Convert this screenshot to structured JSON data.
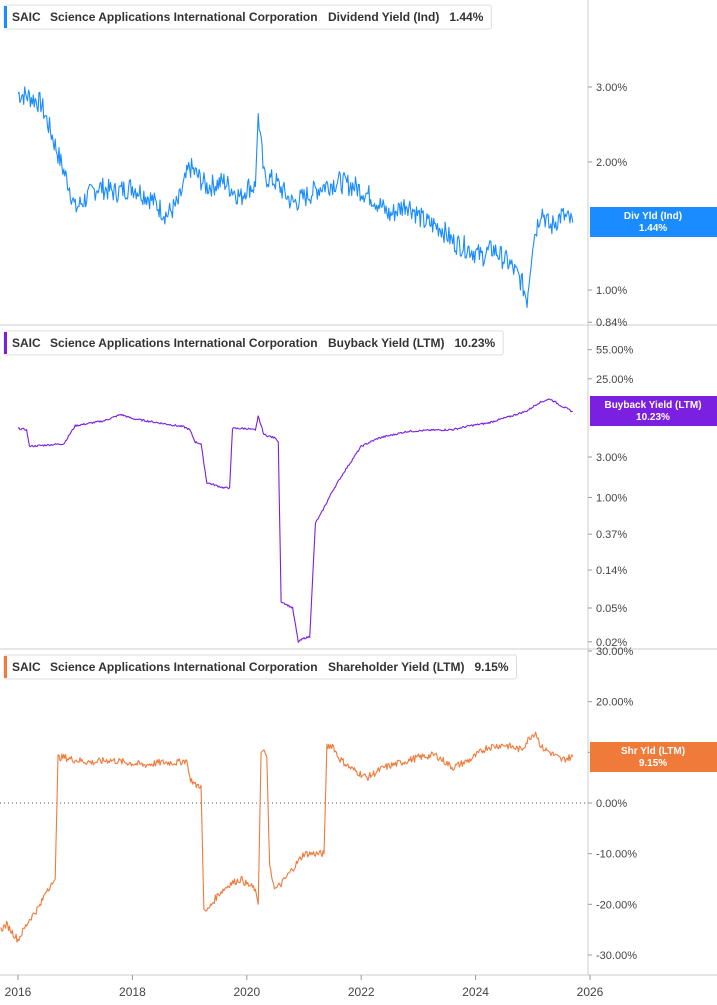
{
  "chart_data": [
    {
      "type": "line",
      "ticker": "SAIC",
      "company": "Science Applications International Corporation",
      "metric": "Dividend Yield (Ind)",
      "current_value": "1.44%",
      "badge_label": "Div Yld (Ind)",
      "color": "#1a8cff",
      "scale": "log",
      "y_ticks": [
        {
          "label": "3.00%",
          "value": 3.0
        },
        {
          "label": "2.00%",
          "value": 2.0
        },
        {
          "label": "1.00%",
          "value": 1.0
        },
        {
          "label": "0.84%",
          "value": 0.84
        }
      ],
      "series": [
        {
          "x": [
            2016.0,
            2016.2,
            2016.4,
            2016.6,
            2016.8,
            2016.9,
            2017.0,
            2017.2,
            2017.4,
            2017.7,
            2018.0,
            2018.3,
            2018.6,
            2018.8,
            2019.0,
            2019.3,
            2019.6,
            2019.9,
            2020.0,
            2020.15,
            2020.2,
            2020.3,
            2020.5,
            2020.8,
            2021.0,
            2021.3,
            2021.6,
            2021.9,
            2022.2,
            2022.5,
            2022.8,
            2022.9,
            2023.1,
            2023.4,
            2023.6,
            2023.9,
            2024.1,
            2024.3,
            2024.6,
            2024.8,
            2024.9,
            2025.0,
            2025.15,
            2025.3,
            2025.5,
            2025.7
          ],
          "y": [
            2.9,
            2.85,
            2.75,
            2.3,
            1.9,
            1.75,
            1.55,
            1.65,
            1.75,
            1.7,
            1.75,
            1.65,
            1.5,
            1.6,
            1.95,
            1.75,
            1.8,
            1.65,
            1.75,
            1.75,
            2.6,
            1.85,
            1.8,
            1.6,
            1.65,
            1.75,
            1.8,
            1.75,
            1.65,
            1.5,
            1.6,
            1.55,
            1.45,
            1.4,
            1.3,
            1.25,
            1.2,
            1.25,
            1.15,
            1.05,
            0.95,
            1.3,
            1.55,
            1.4,
            1.5,
            1.44
          ]
        }
      ]
    },
    {
      "type": "line",
      "ticker": "SAIC",
      "company": "Science Applications International Corporation",
      "metric": "Buyback Yield (LTM)",
      "current_value": "10.23%",
      "badge_label": "Buyback Yield (LTM)",
      "color": "#7b1fe0",
      "scale": "log",
      "y_ticks": [
        {
          "label": "55.00%",
          "value": 55.0
        },
        {
          "label": "25.00%",
          "value": 25.0
        },
        {
          "label": "3.00%",
          "value": 3.0
        },
        {
          "label": "1.00%",
          "value": 1.0
        },
        {
          "label": "0.37%",
          "value": 0.37
        },
        {
          "label": "0.14%",
          "value": 0.14
        },
        {
          "label": "0.05%",
          "value": 0.05
        },
        {
          "label": "0.02%",
          "value": 0.02
        }
      ],
      "series": [
        {
          "x": [
            2016.0,
            2016.15,
            2016.2,
            2016.6,
            2016.8,
            2017.0,
            2017.5,
            2017.8,
            2018.0,
            2018.5,
            2018.9,
            2019.0,
            2019.1,
            2019.2,
            2019.3,
            2019.6,
            2019.7,
            2019.75,
            2020.0,
            2020.15,
            2020.2,
            2020.3,
            2020.5,
            2020.55,
            2020.6,
            2020.8,
            2020.9,
            2021.0,
            2021.1,
            2021.2,
            2021.3,
            2021.5,
            2021.7,
            2022.0,
            2022.3,
            2022.8,
            2023.2,
            2023.6,
            2023.9,
            2024.2,
            2024.6,
            2024.9,
            2025.1,
            2025.3,
            2025.5,
            2025.7
          ],
          "y": [
            6.5,
            6.3,
            4.0,
            4.2,
            4.3,
            7.0,
            8.0,
            9.5,
            8.5,
            7.5,
            6.8,
            6.3,
            4.5,
            4.3,
            1.5,
            1.3,
            1.3,
            6.5,
            6.5,
            6.2,
            9.0,
            5.5,
            5.0,
            4.5,
            0.06,
            0.05,
            0.02,
            0.022,
            0.023,
            0.5,
            0.65,
            1.2,
            2.0,
            4.0,
            5.0,
            6.0,
            6.2,
            6.3,
            7.0,
            7.5,
            9.0,
            10.5,
            13.0,
            14.5,
            12.0,
            10.23
          ]
        }
      ]
    },
    {
      "type": "line",
      "ticker": "SAIC",
      "company": "Science Applications International Corporation",
      "metric": "Shareholder Yield (LTM)",
      "current_value": "9.15%",
      "badge_label": "Shr Yld (LTM)",
      "color": "#f07a3a",
      "scale": "linear",
      "y_ticks": [
        {
          "label": "30.00%",
          "value": 30
        },
        {
          "label": "20.00%",
          "value": 20
        },
        {
          "label": "10.00%",
          "value": 10
        },
        {
          "label": "0.00%",
          "value": 0
        },
        {
          "label": "-10.00%",
          "value": -10
        },
        {
          "label": "-20.00%",
          "value": -20
        },
        {
          "label": "-30.00%",
          "value": -30
        }
      ],
      "zero_line": 0,
      "series": [
        {
          "x": [
            2015.7,
            2015.8,
            2016.0,
            2016.2,
            2016.4,
            2016.5,
            2016.6,
            2016.65,
            2016.7,
            2016.8,
            2017.0,
            2017.3,
            2017.6,
            2017.9,
            2018.2,
            2018.5,
            2018.8,
            2018.95,
            2019.0,
            2019.1,
            2019.2,
            2019.25,
            2019.3,
            2019.5,
            2019.7,
            2019.9,
            2020.0,
            2020.15,
            2020.2,
            2020.25,
            2020.3,
            2020.35,
            2020.4,
            2020.5,
            2020.6,
            2020.8,
            2021.0,
            2021.2,
            2021.35,
            2021.4,
            2021.5,
            2021.6,
            2021.8,
            2022.1,
            2022.4,
            2022.7,
            2023.0,
            2023.3,
            2023.6,
            2023.9,
            2024.2,
            2024.5,
            2024.8,
            2024.95,
            2025.05,
            2025.15,
            2025.3,
            2025.5,
            2025.7
          ],
          "y": [
            -25.0,
            -24.0,
            -27.0,
            -23.0,
            -20.0,
            -17.0,
            -16.0,
            -15.0,
            9.0,
            9.0,
            8.5,
            8.0,
            8.5,
            8.0,
            7.5,
            8.0,
            8.0,
            8.5,
            5.0,
            3.5,
            3.5,
            -21.0,
            -21.5,
            -18.0,
            -16.0,
            -15.0,
            -16.0,
            -17.0,
            -20.0,
            10.0,
            10.5,
            9.0,
            -13.0,
            -17.0,
            -16.0,
            -13.0,
            -10.0,
            -10.0,
            -10.0,
            11.0,
            11.5,
            9.0,
            7.0,
            5.0,
            7.0,
            8.0,
            9.0,
            9.5,
            7.0,
            8.5,
            11.0,
            11.5,
            10.5,
            13.0,
            14.0,
            11.0,
            10.0,
            8.5,
            9.15
          ]
        }
      ]
    }
  ],
  "x_axis": {
    "ticks": [
      {
        "label": "2016",
        "value": 2016
      },
      {
        "label": "2018",
        "value": 2018
      },
      {
        "label": "2020",
        "value": 2020
      },
      {
        "label": "2022",
        "value": 2022
      },
      {
        "label": "2024",
        "value": 2024
      },
      {
        "label": "2026",
        "value": 2026
      }
    ]
  }
}
